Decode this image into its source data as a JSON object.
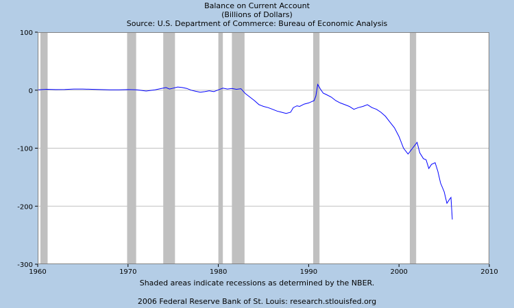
{
  "header": {
    "title": "Balance on Current Account",
    "subtitle": "(Billions of Dollars)",
    "source": "Source: U.S. Department of Commerce: Bureau of Economic Analysis"
  },
  "footer": {
    "recession_note": "Shaded areas indicate recessions as determined by the NBER.",
    "credit": "2006 Federal Reserve Bank of St. Louis: research.stlouisfed.org"
  },
  "colors": {
    "page_background": "#b4cde6",
    "plot_background": "#ffffff",
    "recession_shade": "#c0c0c0",
    "series_line": "#0000ff",
    "grid": "#c0c0c0"
  },
  "chart_data": {
    "type": "line",
    "title": "Balance on Current Account",
    "subtitle": "(Billions of Dollars)",
    "xlim": [
      1960,
      2010
    ],
    "ylim": [
      -300,
      100
    ],
    "x_ticks": [
      1960,
      1970,
      1980,
      1990,
      2000,
      2010
    ],
    "y_ticks": [
      100,
      0,
      -100,
      -200,
      -300
    ],
    "grid": true,
    "recessions": [
      [
        1960.3,
        1961.1
      ],
      [
        1969.9,
        1970.9
      ],
      [
        1973.9,
        1975.2
      ],
      [
        1980.0,
        1980.5
      ],
      [
        1981.5,
        1982.9
      ],
      [
        1990.5,
        1991.2
      ],
      [
        2001.2,
        2001.9
      ]
    ],
    "series": [
      {
        "points": [
          [
            1960.0,
            0.5
          ],
          [
            1960.5,
            1.0
          ],
          [
            1961.0,
            1.5
          ],
          [
            1962.0,
            1.0
          ],
          [
            1963.0,
            1.2
          ],
          [
            1964.0,
            2.0
          ],
          [
            1965.0,
            2.0
          ],
          [
            1966.0,
            1.5
          ],
          [
            1967.0,
            1.0
          ],
          [
            1968.0,
            0.5
          ],
          [
            1969.0,
            0.5
          ],
          [
            1970.0,
            1.0
          ],
          [
            1971.0,
            0.5
          ],
          [
            1972.0,
            -1.5
          ],
          [
            1973.0,
            0.5
          ],
          [
            1973.7,
            3.0
          ],
          [
            1974.2,
            4.5
          ],
          [
            1974.6,
            2.0
          ],
          [
            1975.0,
            3.5
          ],
          [
            1975.5,
            5.5
          ],
          [
            1976.0,
            4.5
          ],
          [
            1976.5,
            3.0
          ],
          [
            1977.0,
            0.0
          ],
          [
            1977.5,
            -2.0
          ],
          [
            1978.0,
            -3.5
          ],
          [
            1978.5,
            -2.5
          ],
          [
            1979.0,
            -1.0
          ],
          [
            1979.5,
            -2.5
          ],
          [
            1980.0,
            0.5
          ],
          [
            1980.5,
            3.5
          ],
          [
            1981.0,
            2.0
          ],
          [
            1981.5,
            3.0
          ],
          [
            1982.0,
            1.5
          ],
          [
            1982.5,
            2.5
          ],
          [
            1983.0,
            -6.0
          ],
          [
            1983.5,
            -12.0
          ],
          [
            1984.0,
            -18.0
          ],
          [
            1984.5,
            -25.0
          ],
          [
            1985.0,
            -28.0
          ],
          [
            1985.5,
            -30.0
          ],
          [
            1986.0,
            -33.0
          ],
          [
            1986.5,
            -36.0
          ],
          [
            1987.0,
            -38.0
          ],
          [
            1987.5,
            -40.0
          ],
          [
            1988.0,
            -38.0
          ],
          [
            1988.3,
            -30.0
          ],
          [
            1988.7,
            -27.0
          ],
          [
            1989.0,
            -28.0
          ],
          [
            1989.5,
            -24.0
          ],
          [
            1990.0,
            -22.0
          ],
          [
            1990.3,
            -20.0
          ],
          [
            1990.6,
            -18.0
          ],
          [
            1990.8,
            -10.0
          ],
          [
            1991.0,
            10.0
          ],
          [
            1991.3,
            2.0
          ],
          [
            1991.6,
            -5.0
          ],
          [
            1992.0,
            -8.0
          ],
          [
            1992.5,
            -12.0
          ],
          [
            1993.0,
            -18.0
          ],
          [
            1993.5,
            -22.0
          ],
          [
            1994.0,
            -25.0
          ],
          [
            1994.5,
            -28.0
          ],
          [
            1995.0,
            -33.0
          ],
          [
            1995.5,
            -30.0
          ],
          [
            1996.0,
            -28.0
          ],
          [
            1996.5,
            -25.0
          ],
          [
            1997.0,
            -30.0
          ],
          [
            1997.5,
            -33.0
          ],
          [
            1998.0,
            -38.0
          ],
          [
            1998.5,
            -45.0
          ],
          [
            1999.0,
            -55.0
          ],
          [
            1999.5,
            -65.0
          ],
          [
            2000.0,
            -80.0
          ],
          [
            2000.5,
            -100.0
          ],
          [
            2001.0,
            -110.0
          ],
          [
            2001.5,
            -100.0
          ],
          [
            2002.0,
            -90.0
          ],
          [
            2002.3,
            -108.0
          ],
          [
            2002.7,
            -118.0
          ],
          [
            2003.0,
            -120.0
          ],
          [
            2003.3,
            -135.0
          ],
          [
            2003.6,
            -128.0
          ],
          [
            2004.0,
            -125.0
          ],
          [
            2004.3,
            -140.0
          ],
          [
            2004.6,
            -160.0
          ],
          [
            2005.0,
            -175.0
          ],
          [
            2005.3,
            -195.0
          ],
          [
            2005.6,
            -188.0
          ],
          [
            2005.75,
            -185.0
          ],
          [
            2005.9,
            -223.0
          ]
        ]
      }
    ]
  }
}
